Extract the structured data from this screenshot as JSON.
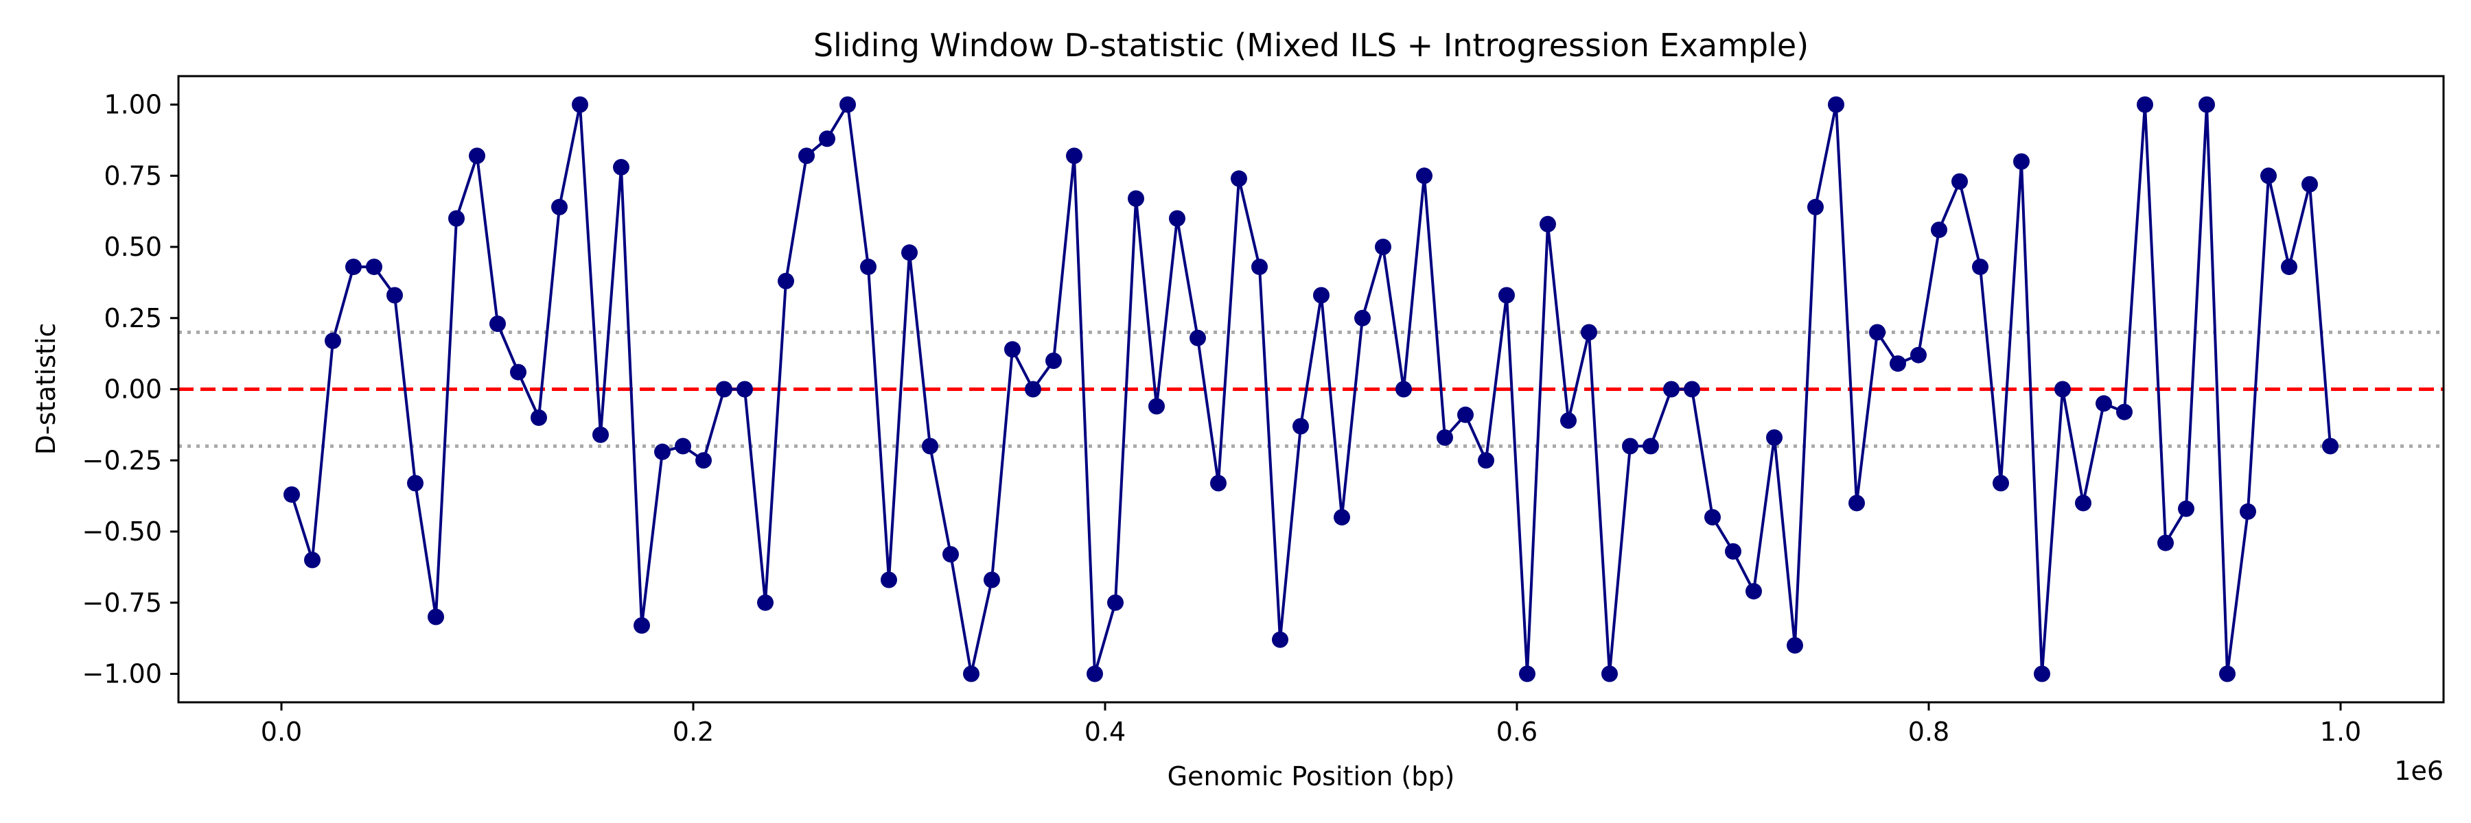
{
  "chart_data": {
    "type": "line",
    "title": "Sliding Window D-statistic (Mixed ILS + Introgression Example)",
    "xlabel": "Genomic Position (bp)",
    "ylabel": "D-statistic",
    "x_offset_label": "1e6",
    "xlim": [
      -50000,
      1050000
    ],
    "ylim": [
      -1.1,
      1.1
    ],
    "x_ticks": [
      0,
      200000,
      400000,
      600000,
      800000,
      1000000
    ],
    "x_tick_labels": [
      "0.0",
      "0.2",
      "0.4",
      "0.6",
      "0.8",
      "1.0"
    ],
    "y_ticks": [
      1.0,
      0.75,
      0.5,
      0.25,
      0.0,
      -0.25,
      -0.5,
      -0.75,
      -1.0
    ],
    "y_tick_labels": [
      "1.00",
      "0.75",
      "0.50",
      "0.25",
      "0.00",
      "−0.25",
      "−0.50",
      "−0.75",
      "−1.00"
    ],
    "grid": false,
    "reference_lines": [
      {
        "y": 0.0,
        "style": "dashed",
        "color": "#ff0000"
      },
      {
        "y": 0.2,
        "style": "dotted",
        "color": "#aaaaaa"
      },
      {
        "y": -0.2,
        "style": "dotted",
        "color": "#aaaaaa"
      }
    ],
    "series": [
      {
        "color": "#000080",
        "marker": "circle",
        "x": [
          5000,
          15000,
          25000,
          35000,
          45000,
          55000,
          65000,
          75000,
          85000,
          95000,
          105000,
          115000,
          125000,
          135000,
          145000,
          155000,
          165000,
          175000,
          185000,
          195000,
          205000,
          215000,
          225000,
          235000,
          245000,
          255000,
          265000,
          275000,
          285000,
          295000,
          305000,
          315000,
          325000,
          335000,
          345000,
          355000,
          365000,
          375000,
          385000,
          395000,
          405000,
          415000,
          425000,
          435000,
          445000,
          455000,
          465000,
          475000,
          485000,
          495000,
          505000,
          515000,
          525000,
          535000,
          545000,
          555000,
          565000,
          575000,
          585000,
          595000,
          605000,
          615000,
          625000,
          635000,
          645000,
          655000,
          665000,
          675000,
          685000,
          695000,
          705000,
          715000,
          725000,
          735000,
          745000,
          755000,
          765000,
          775000,
          785000,
          795000,
          805000,
          815000,
          825000,
          835000,
          845000,
          855000,
          865000,
          875000,
          885000,
          895000,
          905000,
          915000,
          925000,
          935000,
          945000,
          955000,
          965000,
          975000,
          985000,
          995000
        ],
        "values": [
          -0.37,
          -0.6,
          0.17,
          0.43,
          0.43,
          0.33,
          -0.33,
          -0.8,
          0.6,
          0.82,
          0.23,
          0.06,
          -0.1,
          0.64,
          1.0,
          -0.16,
          0.78,
          -0.83,
          -0.22,
          -0.2,
          -0.25,
          0.0,
          0.0,
          -0.75,
          0.38,
          0.82,
          0.88,
          1.0,
          0.43,
          -0.67,
          0.48,
          -0.2,
          -0.58,
          -1.0,
          -0.67,
          0.14,
          0.0,
          0.1,
          0.82,
          -1.0,
          -0.75,
          0.67,
          -0.06,
          0.6,
          0.18,
          -0.33,
          0.74,
          0.43,
          -0.88,
          -0.13,
          0.33,
          -0.45,
          0.25,
          0.5,
          0.0,
          0.75,
          -0.17,
          -0.09,
          -0.25,
          0.33,
          -1.0,
          0.58,
          -0.11,
          0.2,
          -1.0,
          -0.2,
          -0.2,
          0.0,
          0.0,
          -0.45,
          -0.57,
          -0.71,
          -0.17,
          -0.9,
          0.64,
          1.0,
          -0.4,
          0.2,
          0.09,
          0.12,
          0.56,
          0.73,
          0.43,
          -0.33,
          0.8,
          -1.0,
          0.0,
          -0.4,
          -0.05,
          -0.08,
          1.0,
          -0.54,
          -0.42,
          1.0,
          -1.0,
          -0.43,
          0.75,
          0.43,
          0.72,
          -0.2
        ]
      }
    ]
  }
}
